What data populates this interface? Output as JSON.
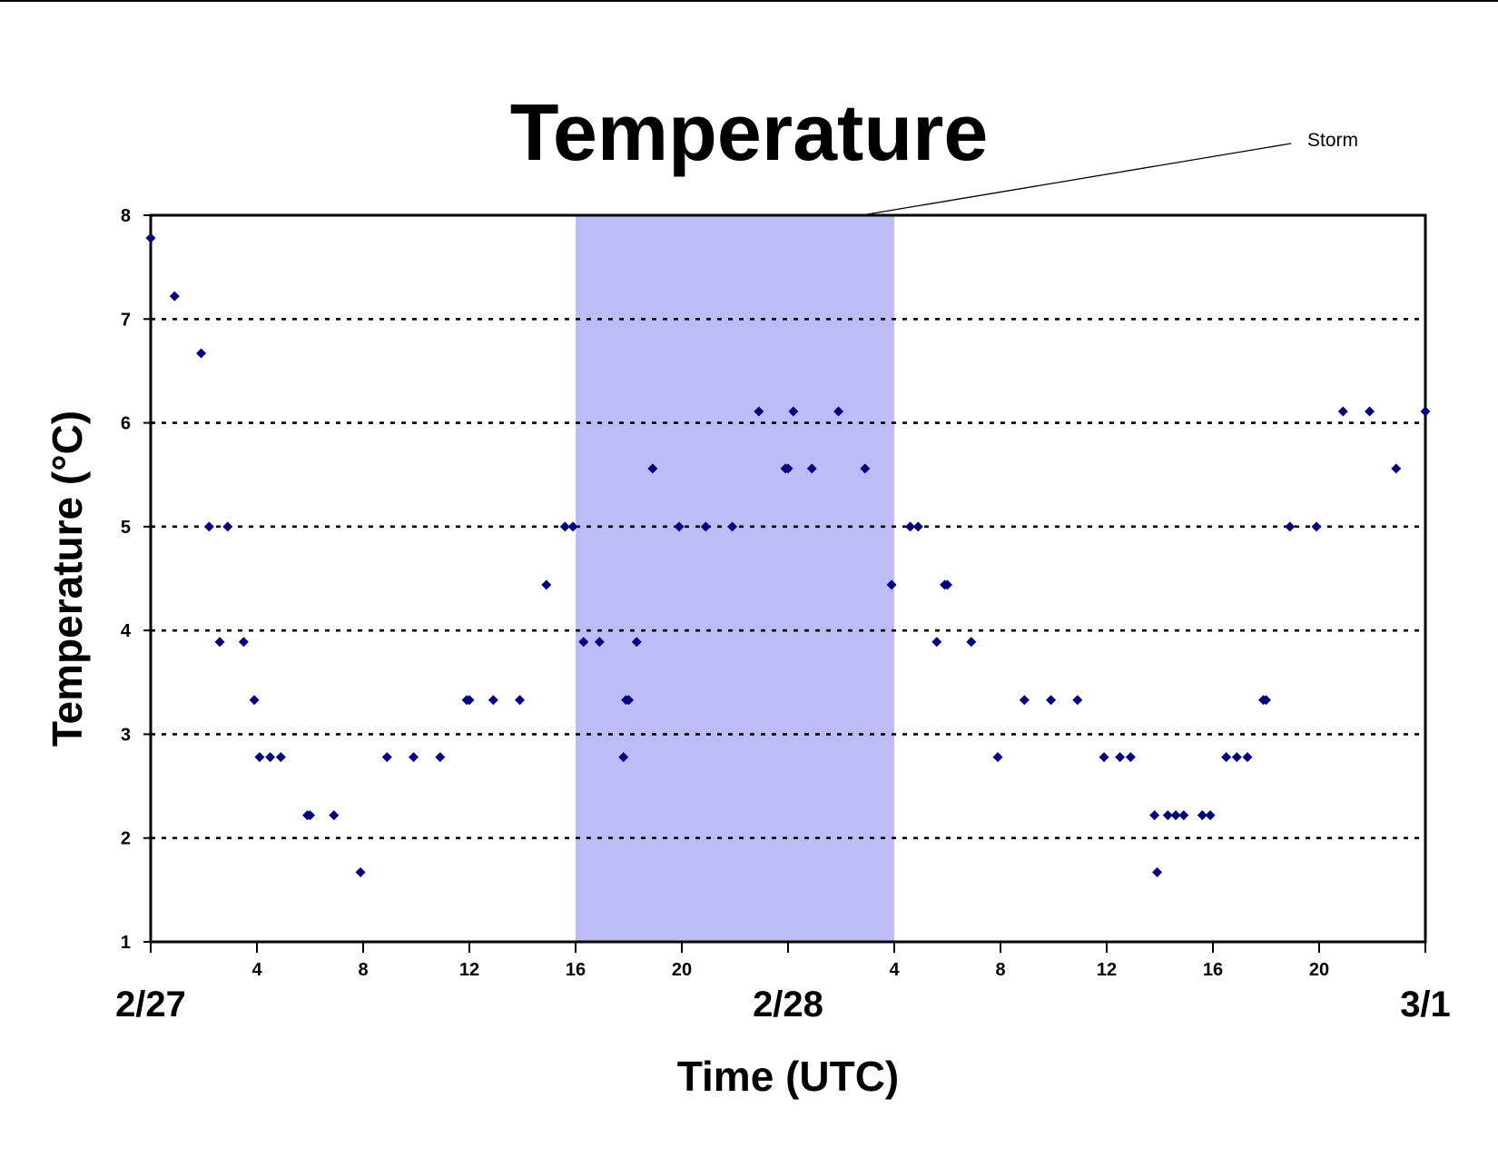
{
  "chart_data": {
    "type": "scatter",
    "title": "Temperature",
    "xlabel": "Time (UTC)",
    "ylabel": "Temperature (°C)",
    "ylim": [
      1,
      8
    ],
    "yticks": [
      1,
      2,
      3,
      4,
      5,
      6,
      7,
      8
    ],
    "xlim_hours": [
      0,
      48
    ],
    "xticks": [
      {
        "h": 4,
        "label": "4"
      },
      {
        "h": 8,
        "label": "8"
      },
      {
        "h": 12,
        "label": "12"
      },
      {
        "h": 16,
        "label": "16"
      },
      {
        "h": 20,
        "label": "20"
      },
      {
        "h": 28,
        "label": "4"
      },
      {
        "h": 32,
        "label": "8"
      },
      {
        "h": 36,
        "label": "12"
      },
      {
        "h": 40,
        "label": "16"
      },
      {
        "h": 44,
        "label": "20"
      }
    ],
    "date_labels": [
      {
        "h": 0,
        "label": "2/27"
      },
      {
        "h": 24,
        "label": "2/28"
      },
      {
        "h": 48,
        "label": "3/1"
      }
    ],
    "grid": "horizontal dotted",
    "legend": "none",
    "marker_color": "#000080",
    "shaded_region": {
      "label": "Storm",
      "x_start_hours": 16,
      "x_end_hours": 28,
      "color": "#bcbcf8"
    },
    "series": [
      {
        "points": [
          [
            0,
            7.78
          ],
          [
            0.9,
            7.22
          ],
          [
            1.9,
            6.67
          ],
          [
            2.2,
            5.0
          ],
          [
            2.6,
            3.89
          ],
          [
            2.9,
            5.0
          ],
          [
            3.5,
            3.89
          ],
          [
            3.9,
            3.33
          ],
          [
            4.1,
            2.78
          ],
          [
            4.5,
            2.78
          ],
          [
            4.9,
            2.78
          ],
          [
            5.9,
            2.22
          ],
          [
            6.0,
            2.22
          ],
          [
            6.9,
            2.22
          ],
          [
            7.9,
            1.67
          ],
          [
            8.9,
            2.78
          ],
          [
            9.9,
            2.78
          ],
          [
            10.9,
            2.78
          ],
          [
            11.9,
            3.33
          ],
          [
            12.0,
            3.33
          ],
          [
            12.9,
            3.33
          ],
          [
            13.9,
            3.33
          ],
          [
            14.9,
            4.44
          ],
          [
            15.6,
            5.0
          ],
          [
            15.9,
            5.0
          ],
          [
            16.3,
            3.89
          ],
          [
            16.9,
            3.89
          ],
          [
            17.8,
            2.78
          ],
          [
            17.9,
            3.33
          ],
          [
            18.0,
            3.33
          ],
          [
            18.3,
            3.89
          ],
          [
            18.9,
            5.56
          ],
          [
            19.9,
            5.0
          ],
          [
            20.9,
            5.0
          ],
          [
            21.9,
            5.0
          ],
          [
            22.9,
            6.11
          ],
          [
            23.9,
            5.56
          ],
          [
            24.0,
            5.56
          ],
          [
            24.2,
            6.11
          ],
          [
            24.9,
            5.56
          ],
          [
            25.9,
            6.11
          ],
          [
            26.9,
            5.56
          ],
          [
            27.9,
            4.44
          ],
          [
            28.6,
            5.0
          ],
          [
            28.9,
            5.0
          ],
          [
            29.6,
            3.89
          ],
          [
            29.9,
            4.44
          ],
          [
            30.0,
            4.44
          ],
          [
            30.9,
            3.89
          ],
          [
            31.9,
            2.78
          ],
          [
            32.9,
            3.33
          ],
          [
            33.9,
            3.33
          ],
          [
            34.9,
            3.33
          ],
          [
            35.9,
            2.78
          ],
          [
            36.5,
            2.78
          ],
          [
            36.9,
            2.78
          ],
          [
            37.8,
            2.22
          ],
          [
            37.9,
            1.67
          ],
          [
            38.3,
            2.22
          ],
          [
            38.6,
            2.22
          ],
          [
            38.9,
            2.22
          ],
          [
            39.6,
            2.22
          ],
          [
            39.9,
            2.22
          ],
          [
            40.5,
            2.78
          ],
          [
            40.9,
            2.78
          ],
          [
            41.3,
            2.78
          ],
          [
            41.9,
            3.33
          ],
          [
            42.0,
            3.33
          ],
          [
            42.9,
            5.0
          ],
          [
            43.9,
            5.0
          ],
          [
            44.9,
            6.11
          ],
          [
            45.9,
            6.11
          ],
          [
            46.9,
            5.56
          ],
          [
            48.0,
            6.11
          ]
        ]
      }
    ]
  }
}
